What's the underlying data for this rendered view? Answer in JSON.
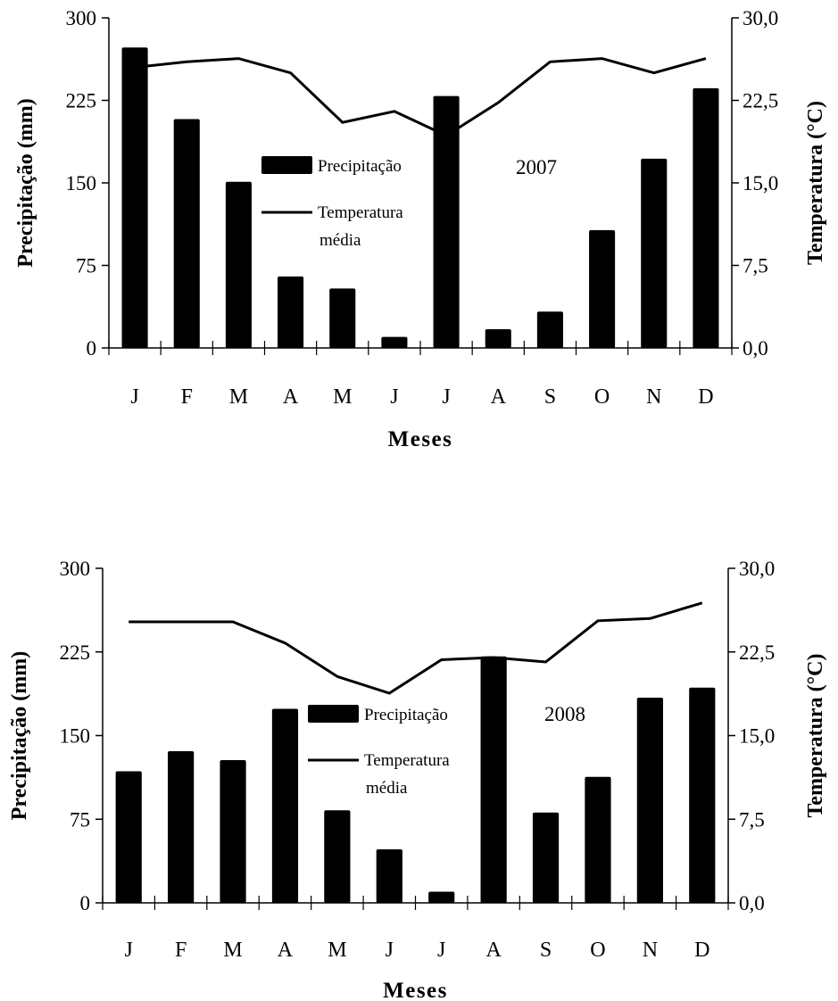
{
  "chart_data": [
    {
      "type": "bar+line",
      "annotation": "2007",
      "categories": [
        "J",
        "F",
        "M",
        "A",
        "M",
        "J",
        "J",
        "A",
        "S",
        "O",
        "N",
        "D"
      ],
      "xlabel": "Meses",
      "ylabel_left": "Precipitação (mm)",
      "ylabel_right": "Temperatura (°C)",
      "ylim_left": [
        0,
        300
      ],
      "ylim_right": [
        0,
        30
      ],
      "yticks_left": [
        "0",
        "75",
        "150",
        "225",
        "300"
      ],
      "yticks_right": [
        "0,0",
        "7,5",
        "15,0",
        "22,5",
        "30,0"
      ],
      "legend": [
        "Precipitação",
        "Temperatura",
        "média"
      ],
      "series": [
        {
          "name": "Precipitação",
          "type": "bar",
          "axis": "left",
          "values": [
            273,
            208,
            151,
            65,
            54,
            10,
            229,
            17,
            33,
            107,
            172,
            236
          ]
        },
        {
          "name": "Temperatura média",
          "type": "line",
          "axis": "right",
          "values": [
            25.5,
            26.0,
            26.3,
            25.0,
            20.5,
            21.5,
            19.3,
            22.3,
            26.0,
            26.3,
            25.0,
            26.3
          ]
        }
      ]
    },
    {
      "type": "bar+line",
      "annotation": "2008",
      "categories": [
        "J",
        "F",
        "M",
        "A",
        "M",
        "J",
        "J",
        "A",
        "S",
        "O",
        "N",
        "D"
      ],
      "xlabel": "Meses",
      "ylabel_left": "Precipitação (mm)",
      "ylabel_right": "Temperatura (°C)",
      "ylim_left": [
        0,
        300
      ],
      "ylim_right": [
        0,
        30
      ],
      "yticks_left": [
        "0",
        "75",
        "150",
        "225",
        "300"
      ],
      "yticks_right": [
        "0,0",
        "7,5",
        "15,0",
        "22,5",
        "30,0"
      ],
      "legend": [
        "Precipitação",
        "Temperatura",
        "média"
      ],
      "series": [
        {
          "name": "Precipitação",
          "type": "bar",
          "axis": "left",
          "values": [
            118,
            136,
            128,
            174,
            83,
            48,
            10,
            221,
            81,
            113,
            184,
            193
          ]
        },
        {
          "name": "Temperatura média",
          "type": "line",
          "axis": "right",
          "values": [
            25.2,
            25.2,
            25.2,
            23.3,
            20.3,
            18.8,
            21.8,
            22.0,
            21.6,
            25.3,
            25.5,
            26.9
          ]
        }
      ]
    }
  ]
}
